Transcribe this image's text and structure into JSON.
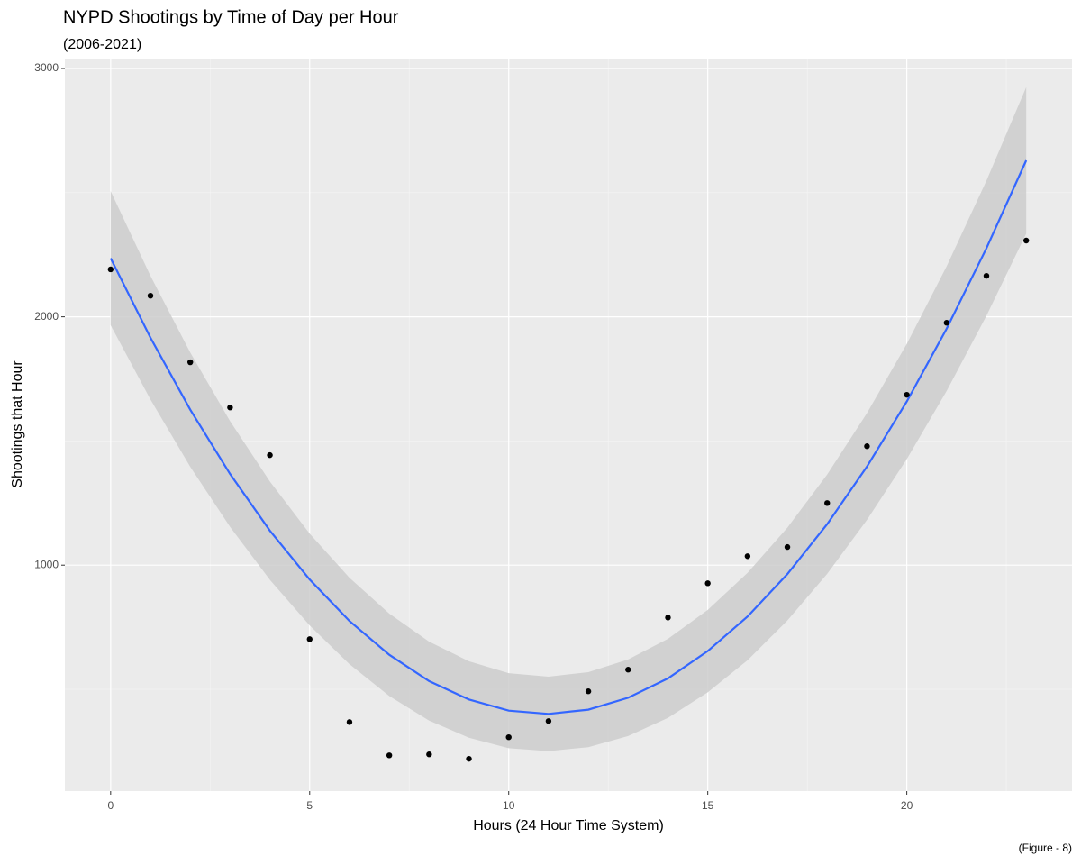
{
  "chart_data": {
    "type": "scatter",
    "title": "NYPD Shootings by Time of Day per Hour",
    "subtitle": "(2006-2021)",
    "x_label": "Hours (24 Hour Time System)",
    "y_label": "Shootings that Hour",
    "caption": "(Figure - 8)",
    "x": [
      0,
      1,
      2,
      3,
      4,
      5,
      6,
      7,
      8,
      9,
      10,
      11,
      12,
      13,
      14,
      15,
      16,
      17,
      18,
      19,
      20,
      21,
      22,
      23
    ],
    "values": [
      2191,
      2085,
      1817,
      1635,
      1443,
      702,
      368,
      234,
      238,
      220,
      307,
      372,
      492,
      579,
      789,
      927,
      1036,
      1073,
      1250,
      1479,
      1686,
      1976,
      2165,
      2307
    ],
    "color": "#000000",
    "fit": {
      "color": "#3366ff",
      "values": [
        2236,
        1916,
        1626,
        1367,
        1139,
        942,
        775,
        639,
        533,
        459,
        414,
        401,
        418,
        466,
        544,
        654,
        793,
        964,
        1165,
        1397,
        1659,
        1952,
        2276,
        2630
      ]
    },
    "band": {
      "color": "#cccccc",
      "lower": [
        1966,
        1667,
        1396,
        1154,
        941,
        757,
        601,
        473,
        374,
        305,
        263,
        251,
        267,
        312,
        385,
        488,
        617,
        777,
        965,
        1182,
        1427,
        1701,
        2004,
        2335
      ],
      "upper": [
        2506,
        2165,
        1856,
        1580,
        1337,
        1127,
        949,
        805,
        692,
        613,
        565,
        551,
        569,
        620,
        703,
        820,
        969,
        1151,
        1365,
        1612,
        1891,
        2203,
        2548,
        2925
      ]
    },
    "xlim": [
      -1.15,
      24.15
    ],
    "ylim": [
      90,
      3040
    ],
    "xticks": [
      0,
      5,
      10,
      15,
      20
    ],
    "yticks": [
      1000,
      2000,
      3000
    ],
    "xminor": [
      2.5,
      7.5,
      12.5,
      17.5,
      22.5
    ],
    "yminor": [
      500,
      1500,
      2500
    ],
    "grid": true
  }
}
